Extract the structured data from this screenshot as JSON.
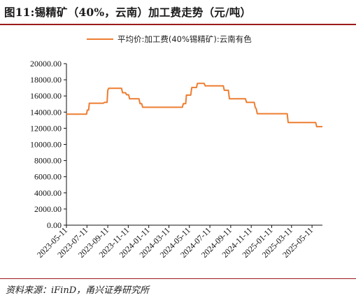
{
  "figure": {
    "title": "图11:锡精矿（40%，云南）加工费走势（元/吨）",
    "source": "资料来源：iFinD，甬兴证券研究所"
  },
  "chart_data": {
    "type": "line",
    "title": "",
    "xlabel": "",
    "ylabel": "",
    "ylim": [
      0,
      20000
    ],
    "yticks": [
      "0.00",
      "2000.00",
      "4000.00",
      "6000.00",
      "8000.00",
      "10000.00",
      "12000.00",
      "14000.00",
      "16000.00",
      "18000.00",
      "20000.00"
    ],
    "xticks": [
      "2023-05-11",
      "2023-07-11",
      "2023-09-11",
      "2023-11-11",
      "2024-01-11",
      "2024-03-11",
      "2024-05-11",
      "2024-07-11",
      "2024-09-11",
      "2024-11-11",
      "2025-01-11",
      "2025-03-11",
      "2025-05-11"
    ],
    "x_range": [
      "2023-05-11",
      "2025-06-11"
    ],
    "grid": false,
    "legend_position": "top",
    "series": [
      {
        "name": "平均价:加工费(40%锡精矿):云南有色",
        "color": "#ED7D31",
        "points": [
          [
            "2023-05-11",
            13750
          ],
          [
            "2023-07-10",
            13750
          ],
          [
            "2023-07-12",
            14250
          ],
          [
            "2023-07-16",
            14250
          ],
          [
            "2023-07-18",
            15100
          ],
          [
            "2023-08-29",
            15100
          ],
          [
            "2023-09-01",
            15200
          ],
          [
            "2023-09-09",
            15200
          ],
          [
            "2023-09-11",
            16700
          ],
          [
            "2023-09-14",
            16950
          ],
          [
            "2023-10-22",
            16950
          ],
          [
            "2023-10-25",
            16400
          ],
          [
            "2023-11-03",
            16400
          ],
          [
            "2023-11-06",
            16150
          ],
          [
            "2023-11-12",
            16150
          ],
          [
            "2023-11-15",
            15650
          ],
          [
            "2023-12-13",
            15650
          ],
          [
            "2023-12-16",
            15050
          ],
          [
            "2023-12-21",
            15050
          ],
          [
            "2023-12-24",
            14600
          ],
          [
            "2024-04-20",
            14600
          ],
          [
            "2024-04-23",
            15050
          ],
          [
            "2024-04-30",
            15050
          ],
          [
            "2024-05-02",
            16100
          ],
          [
            "2024-05-15",
            16100
          ],
          [
            "2024-05-18",
            17050
          ],
          [
            "2024-06-01",
            17050
          ],
          [
            "2024-06-04",
            17550
          ],
          [
            "2024-06-24",
            17550
          ],
          [
            "2024-06-27",
            17250
          ],
          [
            "2024-08-20",
            17250
          ],
          [
            "2024-08-23",
            16700
          ],
          [
            "2024-09-04",
            16700
          ],
          [
            "2024-09-07",
            15650
          ],
          [
            "2024-10-25",
            15650
          ],
          [
            "2024-10-28",
            15200
          ],
          [
            "2024-11-20",
            15200
          ],
          [
            "2024-11-23",
            14600
          ],
          [
            "2024-11-26",
            14400
          ],
          [
            "2024-11-29",
            13800
          ],
          [
            "2025-02-26",
            13800
          ],
          [
            "2025-03-01",
            12700
          ],
          [
            "2025-05-22",
            12700
          ],
          [
            "2025-05-25",
            12200
          ],
          [
            "2025-06-11",
            12200
          ]
        ]
      }
    ]
  }
}
